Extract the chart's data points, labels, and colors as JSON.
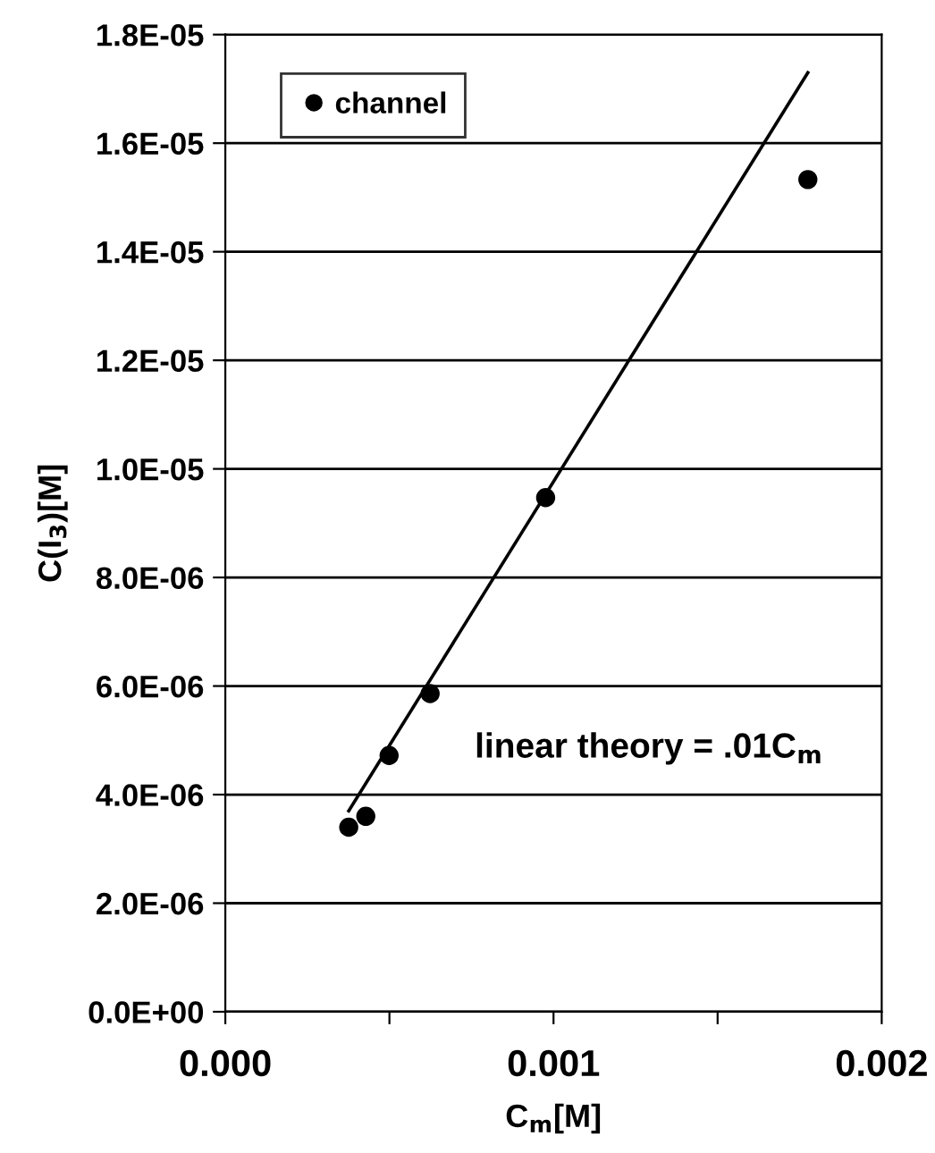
{
  "chart_data": {
    "type": "scatter",
    "xlabel": "C$_{m}$[M]",
    "ylabel": "C(I$_{3}$)[M]",
    "series": [
      {
        "name": "channel",
        "color": "#000000",
        "marker": "circle",
        "x": [
          0.000376,
          0.000428,
          0.000499,
          0.000624,
          0.000976,
          0.001775
        ],
        "values": [
          3.4e-06,
          3.6e-06,
          4.72e-06,
          5.86e-06,
          9.47e-06,
          1.533e-05
        ]
      },
      {
        "type": "line",
        "color": "#000000",
        "line_style": "solid",
        "marker": "none",
        "x": [
          0.000376,
          0.001775
        ],
        "values": [
          3.7e-06,
          1.73e-05
        ]
      }
    ],
    "annotations": [
      "linear theory = .01C$_{m}$"
    ],
    "xlim": [
      0,
      0.002
    ],
    "xticks": [
      {
        "value": 0,
        "label": "0.000"
      },
      {
        "value": 0.0005,
        "label": null
      },
      {
        "value": 0.001,
        "label": "0.001"
      },
      {
        "value": 0.0015,
        "label": null
      },
      {
        "value": 0.002,
        "label": "0.002"
      }
    ],
    "ylim": [
      0,
      1.8e-05
    ],
    "yticks": [
      {
        "value": 0,
        "label": "0.0E+00"
      },
      {
        "value": 2e-06,
        "label": "2.0E-06"
      },
      {
        "value": 4e-06,
        "label": "4.0E-06"
      },
      {
        "value": 6e-06,
        "label": "6.0E-06"
      },
      {
        "value": 8e-06,
        "label": "8.0E-06"
      },
      {
        "value": 1e-05,
        "label": "1.0E-05"
      },
      {
        "value": 1.2e-05,
        "label": "1.2E-05"
      },
      {
        "value": 1.4e-05,
        "label": "1.4E-05"
      },
      {
        "value": 1.6e-05,
        "label": "1.6E-05"
      },
      {
        "value": 1.8e-05,
        "label": "1.8E-05"
      }
    ],
    "grid": "y",
    "legend": "top left"
  }
}
